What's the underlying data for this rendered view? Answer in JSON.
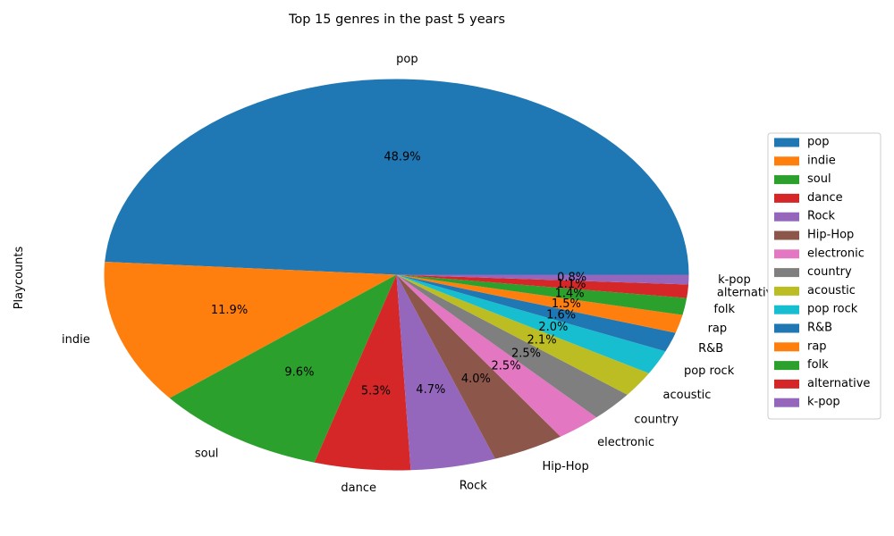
{
  "chart_data": {
    "type": "pie",
    "title": "Top 15 genres in the past 5 years",
    "ylabel": "Playcounts",
    "slices": [
      {
        "label": "pop",
        "percent": 48.9,
        "color": "#1f77b4"
      },
      {
        "label": "indie",
        "percent": 11.9,
        "color": "#ff7f0e"
      },
      {
        "label": "soul",
        "percent": 9.6,
        "color": "#2ca02c"
      },
      {
        "label": "dance",
        "percent": 5.3,
        "color": "#d62728"
      },
      {
        "label": "Rock",
        "percent": 4.7,
        "color": "#9467bd"
      },
      {
        "label": "Hip-Hop",
        "percent": 4.0,
        "color": "#8c564b"
      },
      {
        "label": "electronic",
        "percent": 2.5,
        "color": "#e377c2"
      },
      {
        "label": "country",
        "percent": 2.5,
        "color": "#7f7f7f"
      },
      {
        "label": "acoustic",
        "percent": 2.1,
        "color": "#bcbd22"
      },
      {
        "label": "pop rock",
        "percent": 2.0,
        "color": "#17becf"
      },
      {
        "label": "R&B",
        "percent": 1.6,
        "color": "#1f77b4"
      },
      {
        "label": "rap",
        "percent": 1.5,
        "color": "#ff7f0e"
      },
      {
        "label": "folk",
        "percent": 1.4,
        "color": "#2ca02c"
      },
      {
        "label": "alternative",
        "percent": 1.1,
        "color": "#d62728"
      },
      {
        "label": "k-pop",
        "percent": 0.8,
        "color": "#9467bd"
      }
    ],
    "start_angle_deg": 0,
    "direction": "counterclockwise",
    "percent_format": "0.0%",
    "legend": {
      "placement": "right"
    }
  }
}
